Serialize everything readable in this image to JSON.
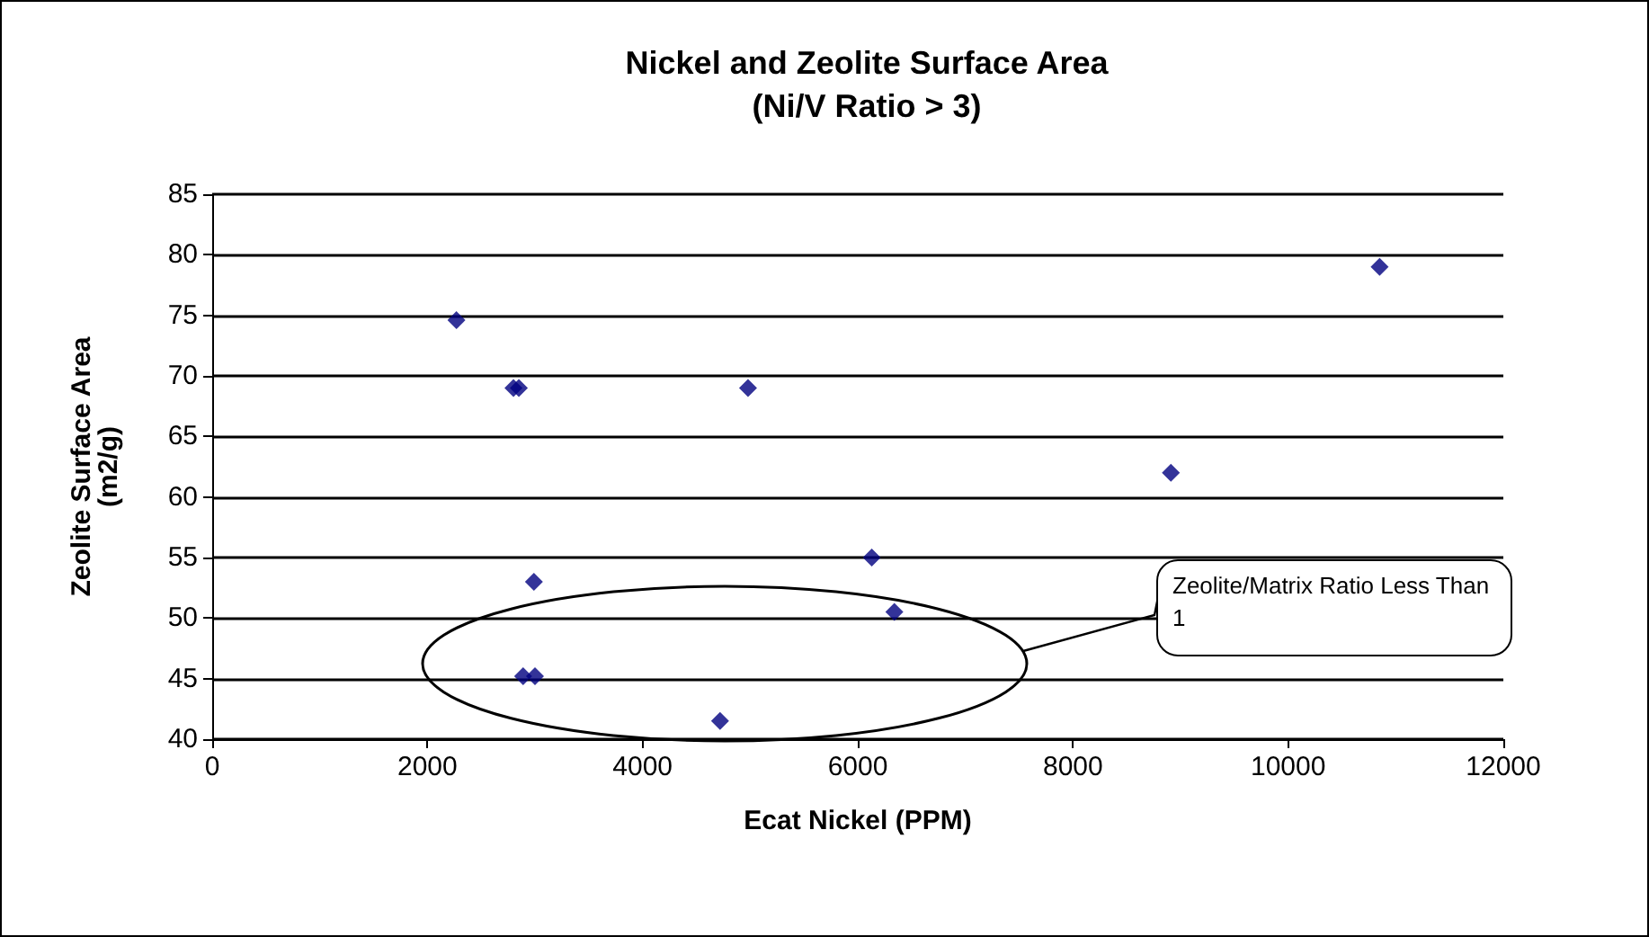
{
  "chart_data": {
    "type": "scatter",
    "title": "Nickel and Zeolite Surface Area",
    "subtitle": "(Ni/V Ratio > 3)",
    "xlabel": "Ecat Nickel (PPM)",
    "ylabel": "Zeolite Surface Area (m2/g)",
    "x": [
      2270,
      2800,
      2850,
      2990,
      2890,
      3000,
      4720,
      4980,
      6130,
      6340,
      8910,
      10850
    ],
    "series": [
      {
        "color": "#000080",
        "values": [
          74.6,
          69,
          69,
          53,
          45.2,
          45.2,
          41.5,
          69,
          55,
          50.5,
          62,
          79
        ]
      }
    ],
    "xlim": [
      0,
      12000
    ],
    "xticks": [
      0,
      2000,
      4000,
      6000,
      8000,
      10000,
      12000
    ],
    "ylim": [
      40,
      85
    ],
    "yticks": [
      40,
      45,
      50,
      55,
      60,
      65,
      70,
      75,
      80,
      85
    ],
    "grid": "y",
    "marker": "diamond",
    "annotations": [
      "Zeolite/Matrix Ratio Less Than 1"
    ]
  }
}
